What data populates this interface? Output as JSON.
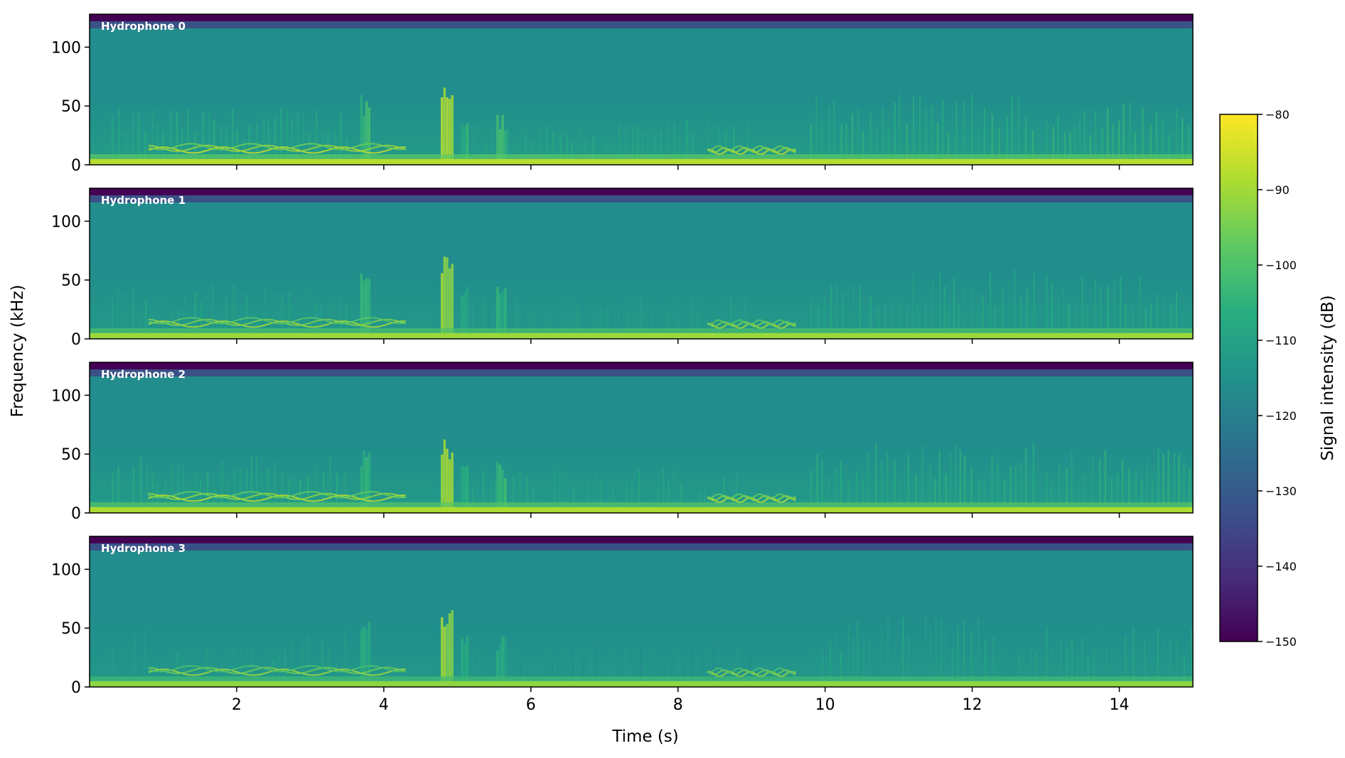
{
  "chart_data": {
    "type": "heatmap",
    "subtype": "spectrogram",
    "xlabel": "Time (s)",
    "ylabel": "Frequency (kHz)",
    "xlim": [
      0,
      15
    ],
    "ylim": [
      0,
      128
    ],
    "x_ticks": [
      2,
      4,
      6,
      8,
      10,
      12,
      14
    ],
    "y_ticks": [
      0,
      50,
      100
    ],
    "colormap": "viridis",
    "colorbar": {
      "label": "Signal intensity (dB)",
      "range": [
        -150,
        -80
      ],
      "ticks": [
        -80,
        -90,
        -100,
        -110,
        -120,
        -130,
        -140,
        -150
      ]
    },
    "panels": [
      {
        "name": "Hydrophone 0",
        "intensity": 1.0
      },
      {
        "name": "Hydrophone 1",
        "intensity": 0.8
      },
      {
        "name": "Hydrophone 2",
        "intensity": 0.95
      },
      {
        "name": "Hydrophone 3",
        "intensity": 0.7
      }
    ],
    "features": {
      "background_db": -116,
      "top_band_db": -150,
      "low_band_db": -88,
      "bursts": [
        {
          "t": 4.85,
          "width": 0.15,
          "fmax": 70,
          "db": -84
        },
        {
          "t": 3.75,
          "width": 0.14,
          "fmax": 60,
          "db": -100
        },
        {
          "t": 5.6,
          "width": 0.14,
          "fmax": 45,
          "db": -100
        },
        {
          "t": 5.1,
          "width": 0.1,
          "fmax": 45,
          "db": -102
        }
      ],
      "whistles": [
        {
          "t0": 0.8,
          "t1": 4.3,
          "f0": 10,
          "f1": 15
        },
        {
          "t0": 8.4,
          "t1": 9.6,
          "f0": 9,
          "f1": 13
        }
      ],
      "click_regions": [
        {
          "t0": 0.3,
          "t1": 3.5,
          "fmax": 45,
          "db": -105
        },
        {
          "t0": 5.2,
          "t1": 9.0,
          "fmax": 35,
          "db": -107
        },
        {
          "t0": 9.8,
          "t1": 12.9,
          "fmax": 55,
          "db": -104
        },
        {
          "t0": 13.0,
          "t1": 15.0,
          "fmax": 50,
          "db": -103
        }
      ]
    }
  }
}
